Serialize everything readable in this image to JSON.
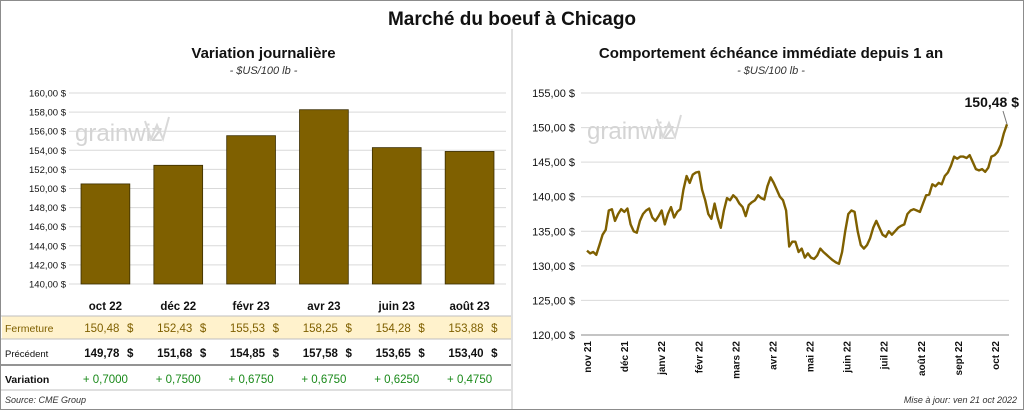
{
  "title": "Marché du boeuf à Chicago",
  "footer": {
    "source": "Source: CME Group",
    "updated": "Mise à jour: ven 21 oct 2022"
  },
  "watermark": "grainwiz",
  "chart_data": [
    {
      "type": "bar",
      "title": "Variation journalière",
      "subtitle": "- $US/100 lb -",
      "categories": [
        "oct 22",
        "déc 22",
        "févr 23",
        "avr 23",
        "juin 23",
        "août 23"
      ],
      "values": [
        150.48,
        152.43,
        155.53,
        158.25,
        154.28,
        153.88
      ],
      "ylim": [
        140,
        160
      ],
      "yticks": [
        "140,00 $",
        "142,00 $",
        "144,00 $",
        "146,00 $",
        "148,00 $",
        "150,00 $",
        "152,00 $",
        "154,00 $",
        "156,00 $",
        "158,00 $",
        "160,00 $"
      ],
      "grid": true,
      "bar_color": "#7f6000",
      "table": {
        "rows": [
          {
            "label": "Fermeture",
            "cells": [
              "150,48 $",
              "152,43 $",
              "155,53 $",
              "158,25 $",
              "154,28 $",
              "153,88 $"
            ]
          },
          {
            "label": "Précédent",
            "cells": [
              "149,78 $",
              "151,68 $",
              "154,85 $",
              "157,58 $",
              "153,65 $",
              "153,40 $"
            ]
          },
          {
            "label": "Variation",
            "cells": [
              "+ 0,7000",
              "+ 0,7500",
              "+ 0,6750",
              "+ 0,6750",
              "+ 0,6250",
              "+ 0,4750"
            ]
          }
        ]
      }
    },
    {
      "type": "line",
      "title": "Comportement échéance immédiate depuis 1 an",
      "subtitle": "- $US/100 lb -",
      "ylim": [
        120,
        155
      ],
      "yticks": [
        "120,00 $",
        "125,00 $",
        "130,00 $",
        "135,00 $",
        "140,00 $",
        "145,00 $",
        "150,00 $",
        "155,00 $"
      ],
      "xticks": [
        "nov 21",
        "déc 21",
        "janv 22",
        "févr 22",
        "mars 22",
        "avr 22",
        "mai 22",
        "juin 22",
        "juil 22",
        "août 22",
        "sept 22",
        "oct 22"
      ],
      "grid": true,
      "line_color": "#7f6000",
      "last_label": "150,48 $",
      "values": [
        132.2,
        131.8,
        132.0,
        131.6,
        133.0,
        134.5,
        135.2,
        138.0,
        138.2,
        136.5,
        137.5,
        138.2,
        137.8,
        138.3,
        136.0,
        135.0,
        134.8,
        136.5,
        137.5,
        138.0,
        138.3,
        137.0,
        136.5,
        137.2,
        138.0,
        136.0,
        137.5,
        138.5,
        137.0,
        137.8,
        138.2,
        141.0,
        143.0,
        142.0,
        143.2,
        143.5,
        143.6,
        141.0,
        139.5,
        137.5,
        136.8,
        139.0,
        137.0,
        135.5,
        138.0,
        139.8,
        139.5,
        140.2,
        139.8,
        139.0,
        138.5,
        137.2,
        138.8,
        139.2,
        139.5,
        140.2,
        139.8,
        139.6,
        141.5,
        142.8,
        142.0,
        141.0,
        140.0,
        139.5,
        138.0,
        132.8,
        133.5,
        133.5,
        132.0,
        132.5,
        131.2,
        131.8,
        131.2,
        131.0,
        131.5,
        132.5,
        132.0,
        131.6,
        131.2,
        130.8,
        130.5,
        130.3,
        132.0,
        135.0,
        137.5,
        138.0,
        137.8,
        135.0,
        133.0,
        132.5,
        133.0,
        134.0,
        135.5,
        136.5,
        135.5,
        134.5,
        134.2,
        135.0,
        134.5,
        135.0,
        135.5,
        135.8,
        136.0,
        137.5,
        138.0,
        138.2,
        138.0,
        137.8,
        139.0,
        140.2,
        140.3,
        141.8,
        141.5,
        142.0,
        141.8,
        143.0,
        143.5,
        144.5,
        145.8,
        145.5,
        145.8,
        145.8,
        145.6,
        146.0,
        145.0,
        144.0,
        143.8,
        144.0,
        143.6,
        144.2,
        145.8,
        146.0,
        146.5,
        147.5,
        149.2,
        150.48
      ]
    }
  ]
}
